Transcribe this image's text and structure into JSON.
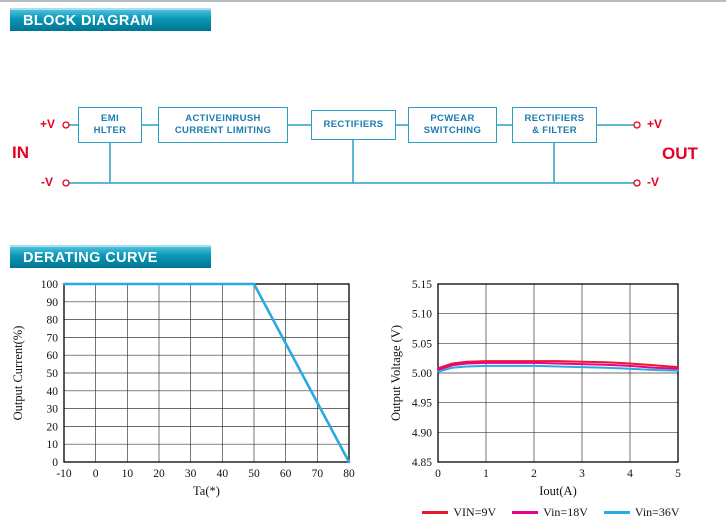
{
  "sections": {
    "block_diagram_title": "BLOCK DIAGRAM",
    "derating_curve_title": "DERATING CURVE"
  },
  "block_diagram": {
    "in_label": "IN",
    "out_label": "OUT",
    "in_pos": "+V",
    "in_neg": "-V",
    "out_pos": "+V",
    "out_neg": "-V",
    "line_color": "#2aa0c6",
    "terminal_color": "#e60021",
    "box_text_color": "#1a7cb0",
    "blocks": [
      {
        "id": "emi-filter",
        "line1": "EMI",
        "line2": "HLTER"
      },
      {
        "id": "active-inrush-current-limiting",
        "line1": "ACTIVEINRUSH",
        "line2": "CURRENT LIMITING"
      },
      {
        "id": "rectifiers",
        "line1": "RECTIFIERS",
        "line2": ""
      },
      {
        "id": "pwm-switching",
        "line1": "PCWEAR",
        "line2": "SWITCHING"
      },
      {
        "id": "rectifiers-and-filter",
        "line1": "RECTIFIERS",
        "line2": "& FILTER"
      }
    ]
  },
  "chart_data": [
    {
      "type": "line",
      "title": "Derating Curve",
      "xlabel": "Ta(*)",
      "ylabel": "Output Current(%)",
      "xlim": [
        -10,
        80
      ],
      "ylim": [
        0,
        100
      ],
      "grid": true,
      "legend_position": "none",
      "xticks": {
        "values": [
          -10,
          0,
          10,
          20,
          30,
          40,
          50,
          60,
          70,
          80
        ],
        "labels": [
          "-10",
          "0",
          "10",
          "20",
          "30",
          "40",
          "50",
          "60",
          "70",
          "80"
        ]
      },
      "yticks": {
        "values": [
          0,
          10,
          20,
          30,
          40,
          50,
          60,
          70,
          80,
          90,
          100
        ],
        "labels": [
          "0",
          "10",
          "20",
          "30",
          "40",
          "50",
          "60",
          "70",
          "80",
          "90",
          "100"
        ]
      },
      "series": [
        {
          "name": "derating-line",
          "color": "#29aae1",
          "width": 2.6,
          "points": [
            [
              -10,
              100
            ],
            [
              50,
              100
            ],
            [
              80,
              0
            ]
          ]
        }
      ]
    },
    {
      "type": "line",
      "title": "Output Voltage vs Iout",
      "xlabel": "Iout(A)",
      "ylabel": "Output Voltage (V)",
      "xlim": [
        0,
        5
      ],
      "ylim": [
        4.85,
        5.15
      ],
      "grid": true,
      "legend_position": "bottom",
      "xticks": {
        "values": [
          0,
          1,
          2,
          3,
          4,
          5
        ],
        "labels": [
          "0",
          "1",
          "2",
          "3",
          "4",
          "5"
        ]
      },
      "yticks": {
        "values": [
          4.85,
          4.9,
          4.95,
          5.0,
          5.05,
          5.1,
          5.15
        ],
        "labels": [
          "4.85",
          "4.90",
          "4.95",
          "5.00",
          "5.05",
          "5.10",
          "5.15"
        ]
      },
      "series": [
        {
          "name": "VIN=9V",
          "color": "#e8192c",
          "width": 2,
          "points": [
            [
              0,
              5.008
            ],
            [
              0.3,
              5.016
            ],
            [
              0.6,
              5.019
            ],
            [
              1,
              5.02
            ],
            [
              1.5,
              5.02
            ],
            [
              2,
              5.02
            ],
            [
              2.5,
              5.02
            ],
            [
              3,
              5.019
            ],
            [
              3.5,
              5.018
            ],
            [
              4,
              5.016
            ],
            [
              4.5,
              5.013
            ],
            [
              5,
              5.01
            ]
          ]
        },
        {
          "name": "Vin=18V",
          "color": "#ec008c",
          "width": 2,
          "points": [
            [
              0,
              5.005
            ],
            [
              0.3,
              5.013
            ],
            [
              0.6,
              5.016
            ],
            [
              1,
              5.017
            ],
            [
              1.5,
              5.017
            ],
            [
              2,
              5.017
            ],
            [
              2.5,
              5.016
            ],
            [
              3,
              5.015
            ],
            [
              3.5,
              5.014
            ],
            [
              4,
              5.012
            ],
            [
              4.5,
              5.009
            ],
            [
              5,
              5.007
            ]
          ]
        },
        {
          "name": "Vin=36V",
          "color": "#29aae1",
          "width": 2,
          "points": [
            [
              0,
              5.002
            ],
            [
              0.3,
              5.009
            ],
            [
              0.6,
              5.011
            ],
            [
              1,
              5.012
            ],
            [
              1.5,
              5.012
            ],
            [
              2,
              5.012
            ],
            [
              2.5,
              5.011
            ],
            [
              3,
              5.01
            ],
            [
              3.5,
              5.009
            ],
            [
              4,
              5.007
            ],
            [
              4.5,
              5.005
            ],
            [
              5,
              5.004
            ]
          ]
        }
      ]
    }
  ]
}
